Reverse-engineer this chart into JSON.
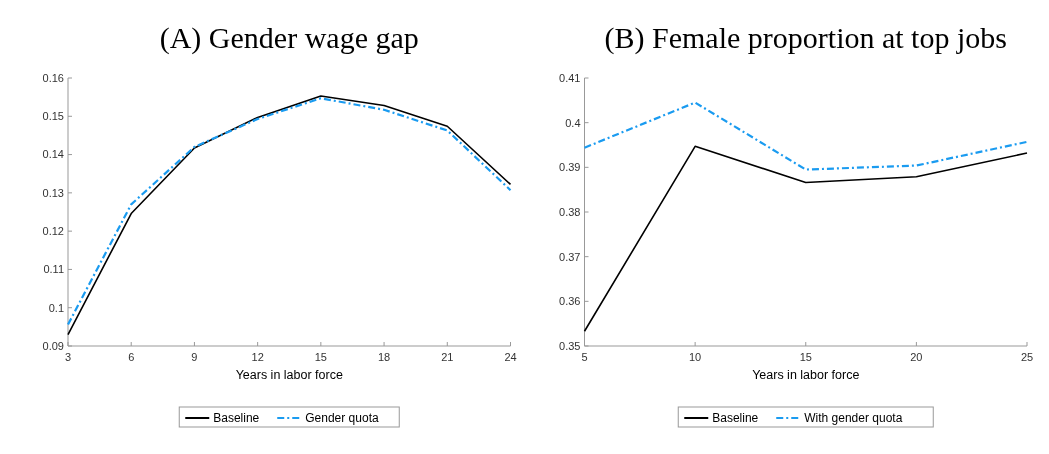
{
  "chart_data": [
    {
      "type": "line",
      "title": "(A) Gender wage gap",
      "xlabel": "Years in labor force",
      "x": [
        3,
        6,
        9,
        12,
        15,
        18,
        21,
        24
      ],
      "xlim": [
        3,
        24
      ],
      "xticks": [
        3,
        6,
        9,
        12,
        15,
        18,
        21,
        24
      ],
      "ylim": [
        0.09,
        0.16
      ],
      "yticks": [
        0.09,
        0.1,
        0.11,
        0.12,
        0.13,
        0.14,
        0.15,
        0.16
      ],
      "grid": false,
      "legend": "bottom",
      "series": [
        {
          "name": "Baseline",
          "color": "#000000",
          "line_style": "solid",
          "values": [
            0.093,
            0.1246,
            0.1417,
            0.1497,
            0.1553,
            0.1528,
            0.1474,
            0.1322
          ]
        },
        {
          "name": "Gender quota",
          "color": "#1a9bf0",
          "line_style": "dashed",
          "values": [
            0.0956,
            0.127,
            0.142,
            0.1493,
            0.1547,
            0.1517,
            0.1463,
            0.1307
          ]
        }
      ]
    },
    {
      "type": "line",
      "title": "(B) Female proportion at top jobs",
      "xlabel": "Years in labor force",
      "x": [
        5,
        10,
        15,
        20,
        25
      ],
      "xlim": [
        5,
        25
      ],
      "xticks": [
        5,
        10,
        15,
        20,
        25
      ],
      "ylim": [
        0.35,
        0.41
      ],
      "yticks": [
        0.35,
        0.36,
        0.37,
        0.38,
        0.39,
        0.4,
        0.41
      ],
      "grid": false,
      "legend": "bottom",
      "series": [
        {
          "name": "Baseline",
          "color": "#000000",
          "line_style": "solid",
          "values": [
            0.3533,
            0.3947,
            0.3866,
            0.3879,
            0.3932
          ]
        },
        {
          "name": "With gender quota",
          "color": "#1a9bf0",
          "line_style": "dashed",
          "values": [
            0.3944,
            0.4045,
            0.3895,
            0.3904,
            0.3957
          ]
        }
      ]
    }
  ]
}
